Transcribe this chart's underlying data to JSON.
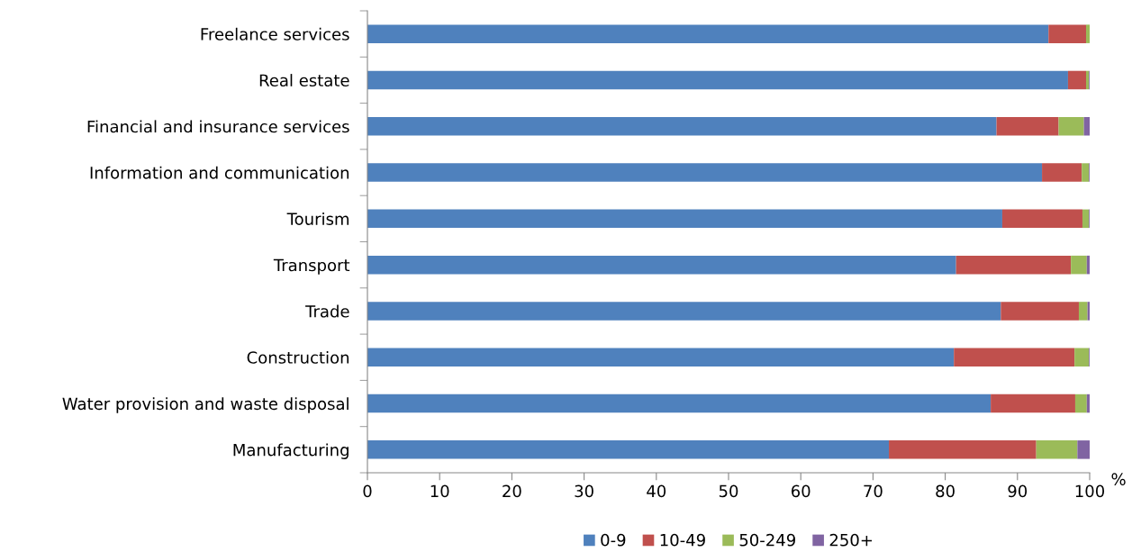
{
  "chart_data": {
    "type": "bar",
    "orientation": "horizontal",
    "stacked": true,
    "categories": [
      "Freelance services",
      "Real estate",
      "Financial and insurance services",
      "Information and communication",
      "Tourism",
      "Transport",
      "Trade",
      "Construction",
      "Water provision and waste disposal",
      "Manufacturing"
    ],
    "series": [
      {
        "name": "0-9",
        "color": "#4f81bd",
        "values": [
          94.3,
          97.0,
          87.1,
          93.4,
          87.9,
          81.5,
          87.7,
          81.2,
          86.3,
          72.2
        ]
      },
      {
        "name": "10-49",
        "color": "#c0504d",
        "values": [
          5.2,
          2.5,
          8.6,
          5.5,
          11.1,
          15.9,
          10.8,
          16.7,
          11.7,
          20.4
        ]
      },
      {
        "name": "50-249",
        "color": "#9bbb59",
        "values": [
          0.5,
          0.4,
          3.5,
          1.0,
          0.9,
          2.2,
          1.2,
          2.0,
          1.6,
          5.7
        ]
      },
      {
        "name": "250+",
        "color": "#8064a2",
        "values": [
          0,
          0.1,
          0.8,
          0.1,
          0.1,
          0.4,
          0.3,
          0.1,
          0.4,
          1.7
        ]
      }
    ],
    "xlabel": "%",
    "xlim": [
      0,
      100
    ],
    "xticks": [
      0,
      10,
      20,
      30,
      40,
      50,
      60,
      70,
      80,
      90,
      100
    ],
    "grid": false,
    "legend": "bottom"
  }
}
